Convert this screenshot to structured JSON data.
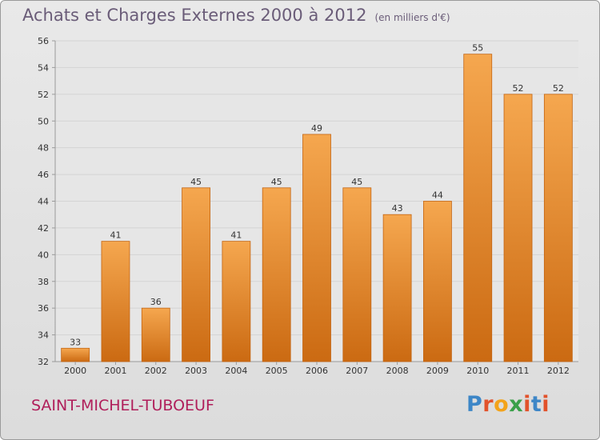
{
  "title": "Achats et Charges Externes 2000 à 2012",
  "unit": "(en milliers d'€)",
  "city": "SAINT-MICHEL-TUBOEUF",
  "brand": {
    "letters": [
      "P",
      "r",
      "o",
      "x",
      "i",
      "t",
      "i"
    ],
    "colors": [
      "#3d86c7",
      "#e2522b",
      "#f3a31a",
      "#3aa04a",
      "#e2522b",
      "#3d86c7",
      "#e2522b"
    ]
  },
  "colors": {
    "bar_top": "#f5a74f",
    "bar_bottom": "#cb6a12",
    "bar_edge": "#c46512",
    "axis": "#9a9a9a",
    "grid": "#d4d4d4"
  },
  "chart_data": {
    "type": "bar",
    "title": "Achats et Charges Externes 2000 à 2012",
    "xlabel": "",
    "ylabel": "",
    "categories": [
      "2000",
      "2001",
      "2002",
      "2003",
      "2004",
      "2005",
      "2006",
      "2007",
      "2008",
      "2009",
      "2010",
      "2011",
      "2012"
    ],
    "values": [
      33,
      41,
      36,
      45,
      41,
      45,
      49,
      45,
      43,
      44,
      55,
      52,
      52
    ],
    "ylim": [
      32,
      56
    ],
    "yticks": [
      32,
      34,
      36,
      38,
      40,
      42,
      44,
      46,
      48,
      50,
      52,
      54,
      56
    ],
    "grid": true
  }
}
